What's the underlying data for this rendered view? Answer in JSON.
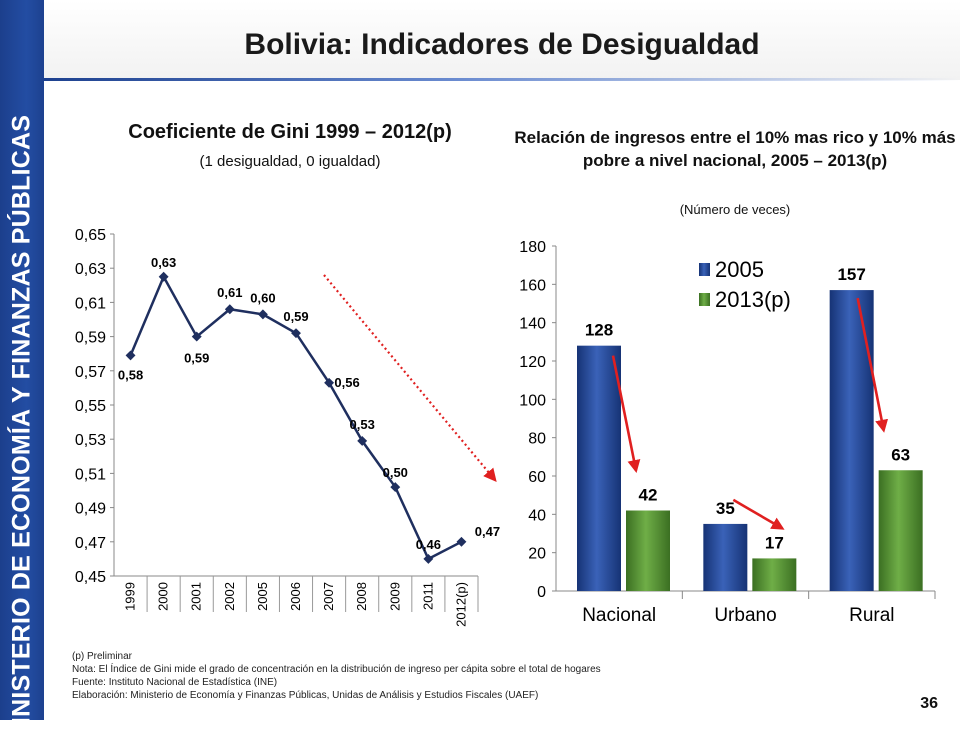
{
  "sidebar_text": "MINISTERIO DE ECONOMÍA Y FINANZAS PÚBLICAS",
  "page_title": "Bolivia: Indicadores de Desigualdad",
  "page_number": "36",
  "colors": {
    "sidebar": "#1f4496",
    "gini_line": "#1f2f5f",
    "series_2005": "#1f3f8f",
    "series_2013": "#4f8a2f",
    "arrow": "#e02020"
  },
  "notes": {
    "preliminar": "(p) Preliminar",
    "nota": "Nota: El Índice de Gini mide el grado de concentración en la distribución de ingreso per cápita sobre el total de hogares",
    "fuente": "Fuente: Instituto Nacional de Estadística (INE)",
    "elaboracion": "Elaboración: Ministerio de Economía y Finanzas Públicas, Unidas de Análisis y Estudios Fiscales (UAEF)"
  },
  "chart_data": [
    {
      "type": "line",
      "title": "Coeficiente de Gini 1999 – 2012(p)",
      "subtitle": "(1 desigualdad, 0 igualdad)",
      "categories": [
        "1999",
        "2000",
        "2001",
        "2002",
        "2005",
        "2006",
        "2007",
        "2008",
        "2009",
        "2011",
        "2012(p)"
      ],
      "values": [
        0.579,
        0.625,
        0.59,
        0.606,
        0.603,
        0.592,
        0.563,
        0.529,
        0.502,
        0.46,
        0.47
      ],
      "data_labels": [
        "0,58",
        "0,63",
        "0,59",
        "0,61",
        "0,60",
        "0,59",
        "0,56",
        "0,53",
        "0,50",
        "0,46",
        "0,47"
      ],
      "y_ticks": [
        "0,65",
        "0,63",
        "0,61",
        "0,59",
        "0,57",
        "0,55",
        "0,53",
        "0,51",
        "0,49",
        "0,47",
        "0,45"
      ],
      "ylim": [
        0.45,
        0.65
      ],
      "annotation": "dotted red downward trend arrow"
    },
    {
      "type": "bar",
      "title": "Relación de ingresos entre el 10% mas rico y 10% más pobre a nivel nacional, 2005 – 2013(p)",
      "subtitle": "(Número de veces)",
      "categories": [
        "Nacional",
        "Urbano",
        "Rural"
      ],
      "series": [
        {
          "name": "2005",
          "values": [
            128,
            35,
            157
          ],
          "labels": [
            "128",
            "35",
            "157"
          ]
        },
        {
          "name": "2013(p)",
          "values": [
            42,
            17,
            63
          ],
          "labels": [
            "42",
            "17",
            "63"
          ]
        }
      ],
      "y_ticks": [
        "180",
        "160",
        "140",
        "120",
        "100",
        "80",
        "60",
        "40",
        "20",
        "0"
      ],
      "ylim": [
        0,
        180
      ],
      "legend": "top-left inside plot",
      "annotation": "red arrows from 2005 bars to 2013(p) bars"
    }
  ]
}
